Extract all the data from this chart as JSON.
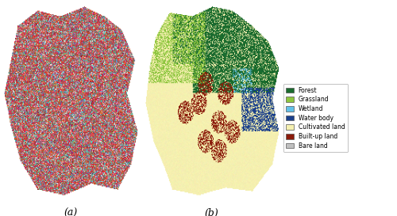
{
  "title_a": "(a)",
  "title_b": "(b)",
  "legend_items": [
    {
      "label": "Forest",
      "color": "#1a6b2e"
    },
    {
      "label": "Grassland",
      "color": "#8ec63f"
    },
    {
      "label": "Wetland",
      "color": "#62c0e8"
    },
    {
      "label": "Water body",
      "color": "#1a3f8c"
    },
    {
      "label": "Cultivated land",
      "color": "#f5f0b0"
    },
    {
      "label": "Built-up land",
      "color": "#8b1a0a"
    },
    {
      "label": "Bare land",
      "color": "#c0c0c0"
    }
  ],
  "fig_width": 5.0,
  "fig_height": 2.73,
  "dpi": 100,
  "background": "#ffffff",
  "label_fontsize": 9,
  "legend_fontsize": 5.5
}
